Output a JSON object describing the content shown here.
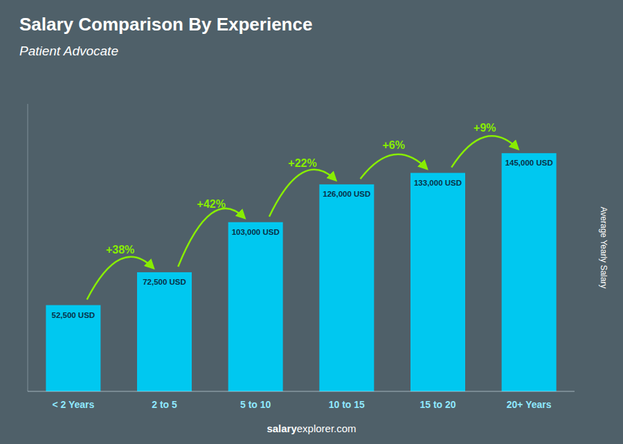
{
  "chart_data": {
    "type": "bar",
    "title": "Salary Comparison By Experience",
    "subtitle": "Patient Advocate",
    "y_label": "Average Yearly Salary",
    "categories": [
      "< 2 Years",
      "2 to 5",
      "5 to 10",
      "10 to 15",
      "15 to 20",
      "20+ Years"
    ],
    "values": [
      52500,
      72500,
      103000,
      126000,
      133000,
      145000
    ],
    "value_labels": [
      "52,500 USD",
      "72,500 USD",
      "103,000 USD",
      "126,000 USD",
      "133,000 USD",
      "145,000 USD"
    ],
    "data_labels": true,
    "color": "#00c8f0",
    "annotations": [
      {
        "text": "+38%",
        "color": "#88ee00"
      },
      {
        "text": "+42%",
        "color": "#88ee00"
      },
      {
        "text": "+22%",
        "color": "#88ee00"
      },
      {
        "text": "+6%",
        "color": "#88ee00"
      },
      {
        "text": "+9%",
        "color": "#88ee00"
      }
    ],
    "footer": [
      "salary",
      "explorer.com"
    ],
    "ylim": [
      0,
      175000
    ],
    "grid": false,
    "tick_labels": "x"
  }
}
